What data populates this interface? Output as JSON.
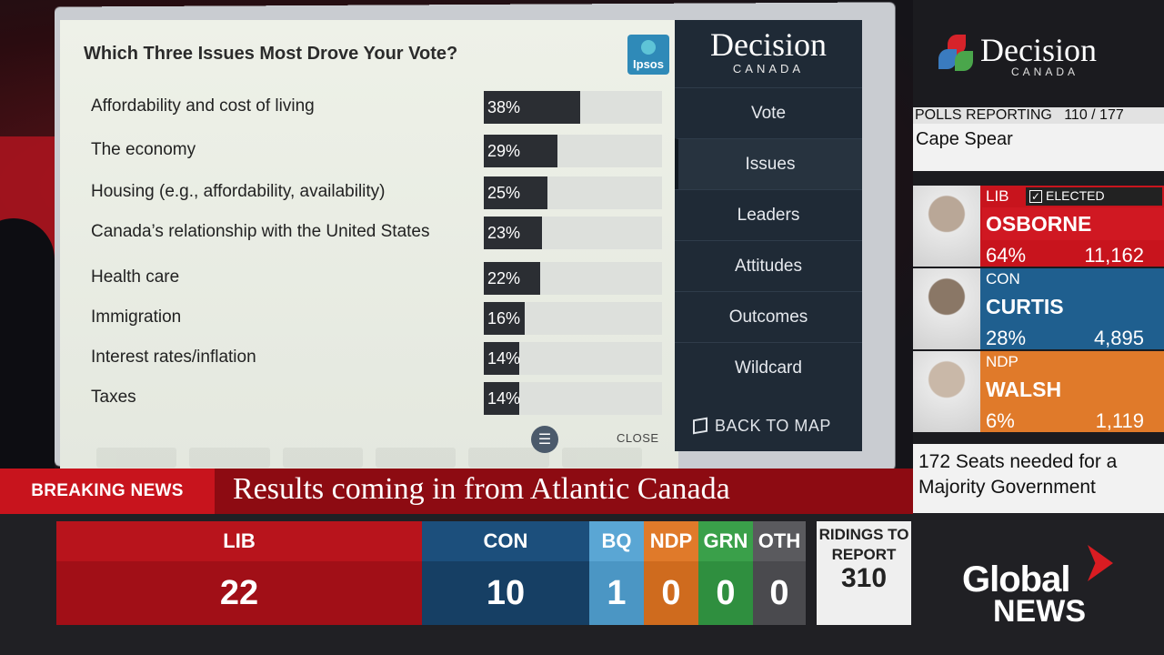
{
  "survey": {
    "title": "Which Three Issues Most Drove Your Vote?",
    "source_logo": "Ipsos",
    "issues": [
      {
        "label": "Affordability and cost of living",
        "value": 38,
        "display": "38%"
      },
      {
        "label": "The economy",
        "value": 29,
        "display": "29%"
      },
      {
        "label": "Housing (e.g., affordability, availability)",
        "value": 25,
        "display": "25%"
      },
      {
        "label": "Canada’s relationship with the United States",
        "value": 23,
        "display": "23%"
      },
      {
        "label": "Health care",
        "value": 22,
        "display": "22%"
      },
      {
        "label": "Immigration",
        "value": 16,
        "display": "16%"
      },
      {
        "label": "Interest rates/inflation",
        "value": 14,
        "display": "14%"
      },
      {
        "label": "Taxes",
        "value": 14,
        "display": "14%"
      }
    ],
    "close_label": "CLOSE"
  },
  "panel": {
    "brand": "Decision",
    "brand_sub": "CANADA",
    "nav": [
      "Vote",
      "Issues",
      "Leaders",
      "Attitudes",
      "Outcomes",
      "Wildcard"
    ],
    "active_nav": "Issues",
    "back_label": "BACK TO MAP"
  },
  "sidebar": {
    "brand": "Decision",
    "brand_sub": "CANADA",
    "polls_label": "POLLS REPORTING",
    "polls_value": "110 / 177",
    "riding": "Cape Spear",
    "elected_label": "ELECTED",
    "candidates": [
      {
        "party": "LIB",
        "name": "OSBORNE",
        "pct": "64%",
        "votes": "11,162",
        "color": "#c8141d"
      },
      {
        "party": "CON",
        "name": "CURTIS",
        "pct": "28%",
        "votes": "4,895",
        "color": "#1f5f8f"
      },
      {
        "party": "NDP",
        "name": "WALSH",
        "pct": "6%",
        "votes": "1,119",
        "color": "#e07a2a"
      }
    ],
    "seats_needed": "172 Seats needed for a Majority Government"
  },
  "ticker": {
    "tag": "BREAKING NEWS",
    "headline": "Results coming in from Atlantic Canada"
  },
  "seats": {
    "parties": [
      {
        "name": "LIB",
        "seats": "22",
        "color_top": "#b8141c",
        "color_bot": "#a10f17"
      },
      {
        "name": "CON",
        "seats": "10",
        "color_top": "#1c4f7c",
        "color_bot": "#163f64"
      },
      {
        "name": "BQ",
        "seats": "1",
        "color_top": "#5aa6d4",
        "color_bot": "#4b96c4"
      },
      {
        "name": "NDP",
        "seats": "0",
        "color_top": "#e07a2a",
        "color_bot": "#cf6b1e"
      },
      {
        "name": "GRN",
        "seats": "0",
        "color_top": "#3aa04a",
        "color_bot": "#2f8f3f"
      },
      {
        "name": "OTH",
        "seats": "0",
        "color_top": "#5a5a5e",
        "color_bot": "#4a4a4e"
      }
    ],
    "ridings_label": "RIDINGS TO REPORT",
    "ridings_value": "310"
  },
  "network": {
    "line1": "Global",
    "line2": "NEWS"
  }
}
